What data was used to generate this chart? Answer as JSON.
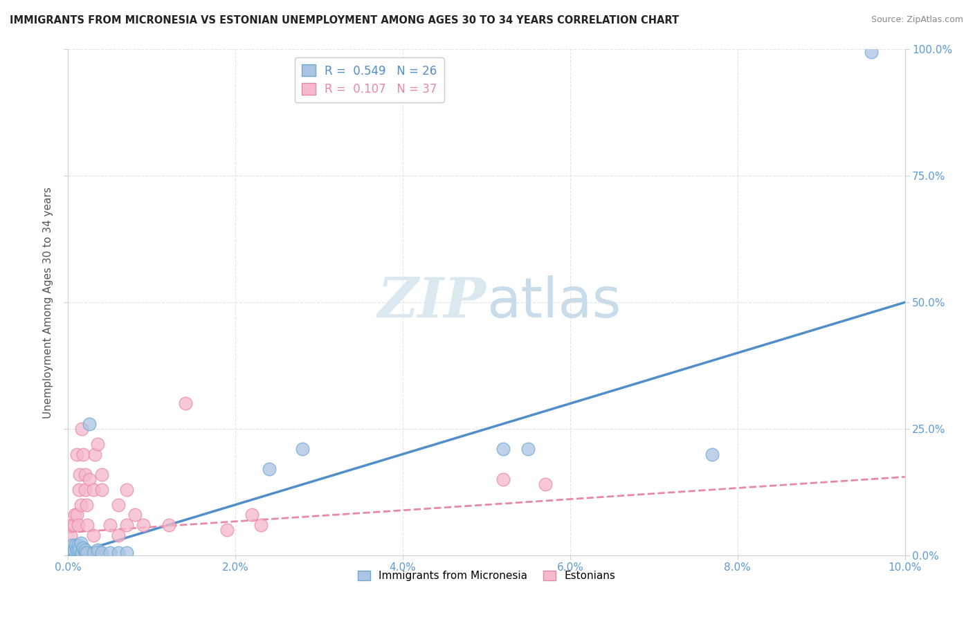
{
  "title": "IMMIGRANTS FROM MICRONESIA VS ESTONIAN UNEMPLOYMENT AMONG AGES 30 TO 34 YEARS CORRELATION CHART",
  "source": "Source: ZipAtlas.com",
  "ylabel": "Unemployment Among Ages 30 to 34 years",
  "xlim": [
    0.0,
    0.1
  ],
  "ylim": [
    0.0,
    1.0
  ],
  "xticks": [
    0.0,
    0.02,
    0.04,
    0.06,
    0.08,
    0.1
  ],
  "xtick_labels": [
    "0.0%",
    "2.0%",
    "4.0%",
    "6.0%",
    "8.0%",
    "10.0%"
  ],
  "yticks": [
    0.0,
    0.25,
    0.5,
    0.75,
    1.0
  ],
  "ytick_labels": [
    "0.0%",
    "25.0%",
    "50.0%",
    "75.0%",
    "100.0%"
  ],
  "blue_R": 0.549,
  "blue_N": 26,
  "pink_R": 0.107,
  "pink_N": 37,
  "blue_scatter_color": "#aac4e2",
  "blue_edge_color": "#6aaad4",
  "pink_scatter_color": "#f5b8cc",
  "pink_edge_color": "#e888a8",
  "blue_line_color": "#4f8ec9",
  "pink_line_color": "#e888a8",
  "watermark_color": "#dce8f0",
  "background_color": "#ffffff",
  "grid_color": "#e0e0e0",
  "tick_color": "#5b9bd5",
  "legend_blue_label": "Immigrants from Micronesia",
  "legend_pink_label": "Estonians",
  "blue_line_x0": 0.0,
  "blue_line_y0": 0.0,
  "blue_line_x1": 0.1,
  "blue_line_y1": 0.5,
  "pink_line_x0": 0.0,
  "pink_line_y0": 0.045,
  "pink_line_x1": 0.1,
  "pink_line_y1": 0.155,
  "blue_scatter_x": [
    0.0005,
    0.0005,
    0.0007,
    0.0009,
    0.001,
    0.0012,
    0.0013,
    0.0015,
    0.0016,
    0.0018,
    0.002,
    0.002,
    0.0022,
    0.0025,
    0.003,
    0.0035,
    0.004,
    0.005,
    0.006,
    0.007,
    0.024,
    0.028,
    0.052,
    0.055,
    0.077,
    0.096
  ],
  "blue_scatter_y": [
    0.01,
    0.02,
    0.01,
    0.02,
    0.01,
    0.02,
    0.01,
    0.025,
    0.005,
    0.015,
    0.005,
    0.01,
    0.005,
    0.26,
    0.005,
    0.01,
    0.005,
    0.005,
    0.005,
    0.005,
    0.17,
    0.21,
    0.21,
    0.21,
    0.2,
    0.995
  ],
  "pink_scatter_x": [
    0.0003,
    0.0005,
    0.0007,
    0.0008,
    0.001,
    0.001,
    0.0012,
    0.0013,
    0.0014,
    0.0015,
    0.0016,
    0.0018,
    0.002,
    0.002,
    0.0022,
    0.0023,
    0.0025,
    0.003,
    0.003,
    0.0032,
    0.0035,
    0.004,
    0.004,
    0.005,
    0.006,
    0.006,
    0.007,
    0.007,
    0.008,
    0.009,
    0.012,
    0.014,
    0.019,
    0.022,
    0.023,
    0.052,
    0.057
  ],
  "pink_scatter_y": [
    0.04,
    0.06,
    0.06,
    0.08,
    0.2,
    0.08,
    0.06,
    0.13,
    0.16,
    0.1,
    0.25,
    0.2,
    0.13,
    0.16,
    0.1,
    0.06,
    0.15,
    0.13,
    0.04,
    0.2,
    0.22,
    0.16,
    0.13,
    0.06,
    0.04,
    0.1,
    0.06,
    0.13,
    0.08,
    0.06,
    0.06,
    0.3,
    0.05,
    0.08,
    0.06,
    0.15,
    0.14
  ]
}
